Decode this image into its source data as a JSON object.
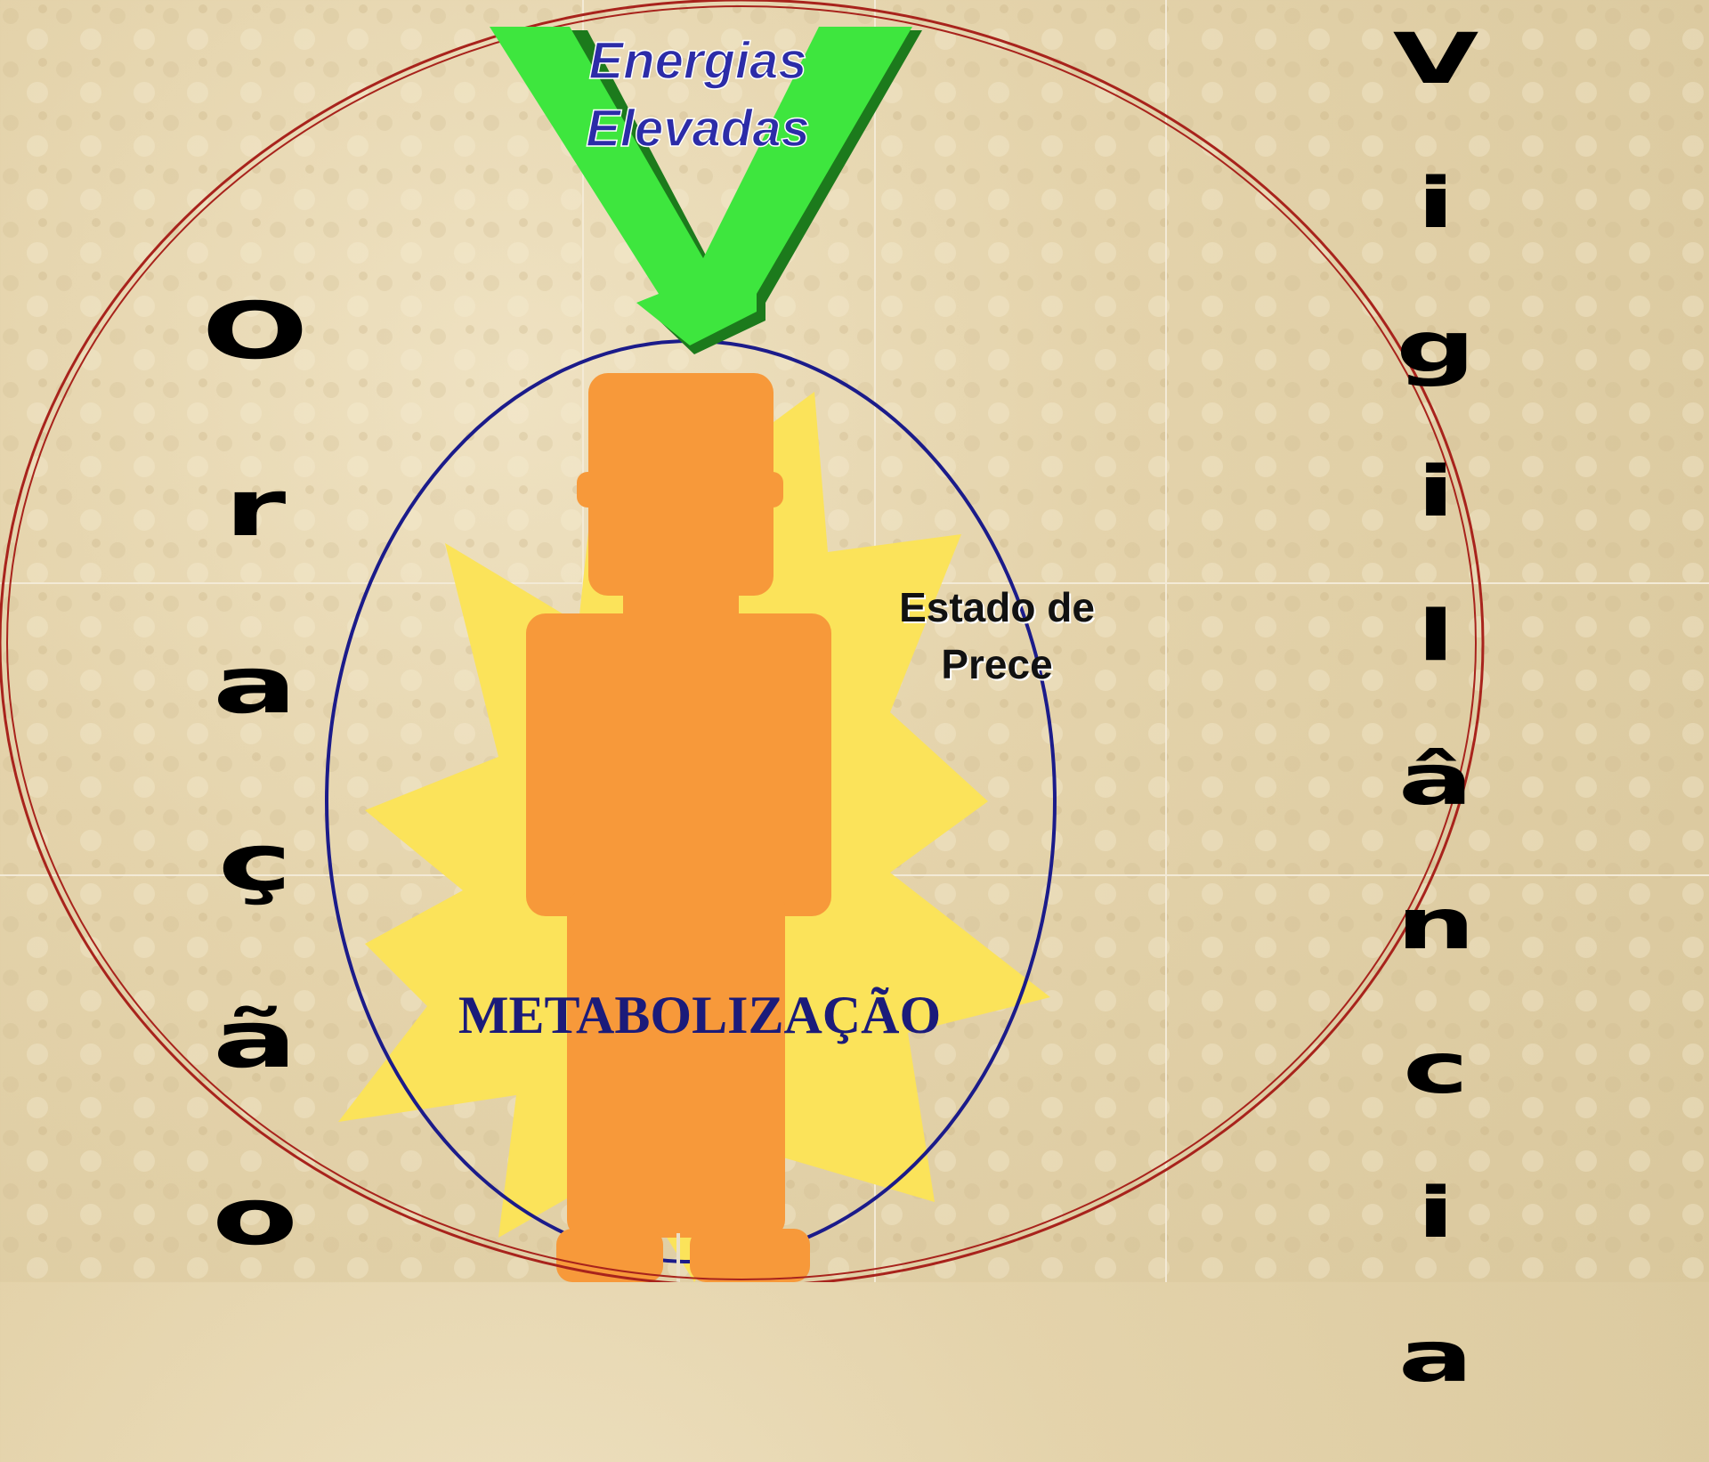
{
  "arrow_text": [
    "Energias",
    "Elevadas"
  ],
  "state_text": [
    "Estado de",
    "Prece"
  ],
  "center_text": "METABOLIZAÇÃO",
  "left_word": "Oração",
  "right_word": "Vigilância"
}
